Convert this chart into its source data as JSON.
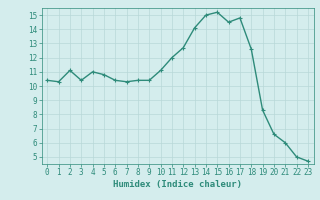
{
  "x": [
    0,
    1,
    2,
    3,
    4,
    5,
    6,
    7,
    8,
    9,
    10,
    11,
    12,
    13,
    14,
    15,
    16,
    17,
    18,
    19,
    20,
    21,
    22,
    23
  ],
  "y": [
    10.4,
    10.3,
    11.1,
    10.4,
    11.0,
    10.8,
    10.4,
    10.3,
    10.4,
    10.4,
    11.1,
    12.0,
    12.7,
    14.1,
    15.0,
    15.2,
    14.5,
    14.8,
    12.6,
    8.3,
    6.6,
    6.0,
    5.0,
    4.7
  ],
  "line_color": "#2e8b7a",
  "marker": "+",
  "marker_size": 3,
  "xlabel": "Humidex (Indice chaleur)",
  "xlim": [
    -0.5,
    23.5
  ],
  "ylim": [
    4.5,
    15.5
  ],
  "yticks": [
    5,
    6,
    7,
    8,
    9,
    10,
    11,
    12,
    13,
    14,
    15
  ],
  "xticks": [
    0,
    1,
    2,
    3,
    4,
    5,
    6,
    7,
    8,
    9,
    10,
    11,
    12,
    13,
    14,
    15,
    16,
    17,
    18,
    19,
    20,
    21,
    22,
    23
  ],
  "bg_color": "#d4eded",
  "grid_color": "#b8d8d8",
  "tick_color": "#2e8b7a",
  "label_color": "#2e8b7a",
  "line_width": 1.0,
  "tick_fontsize": 5.5,
  "xlabel_fontsize": 6.5
}
